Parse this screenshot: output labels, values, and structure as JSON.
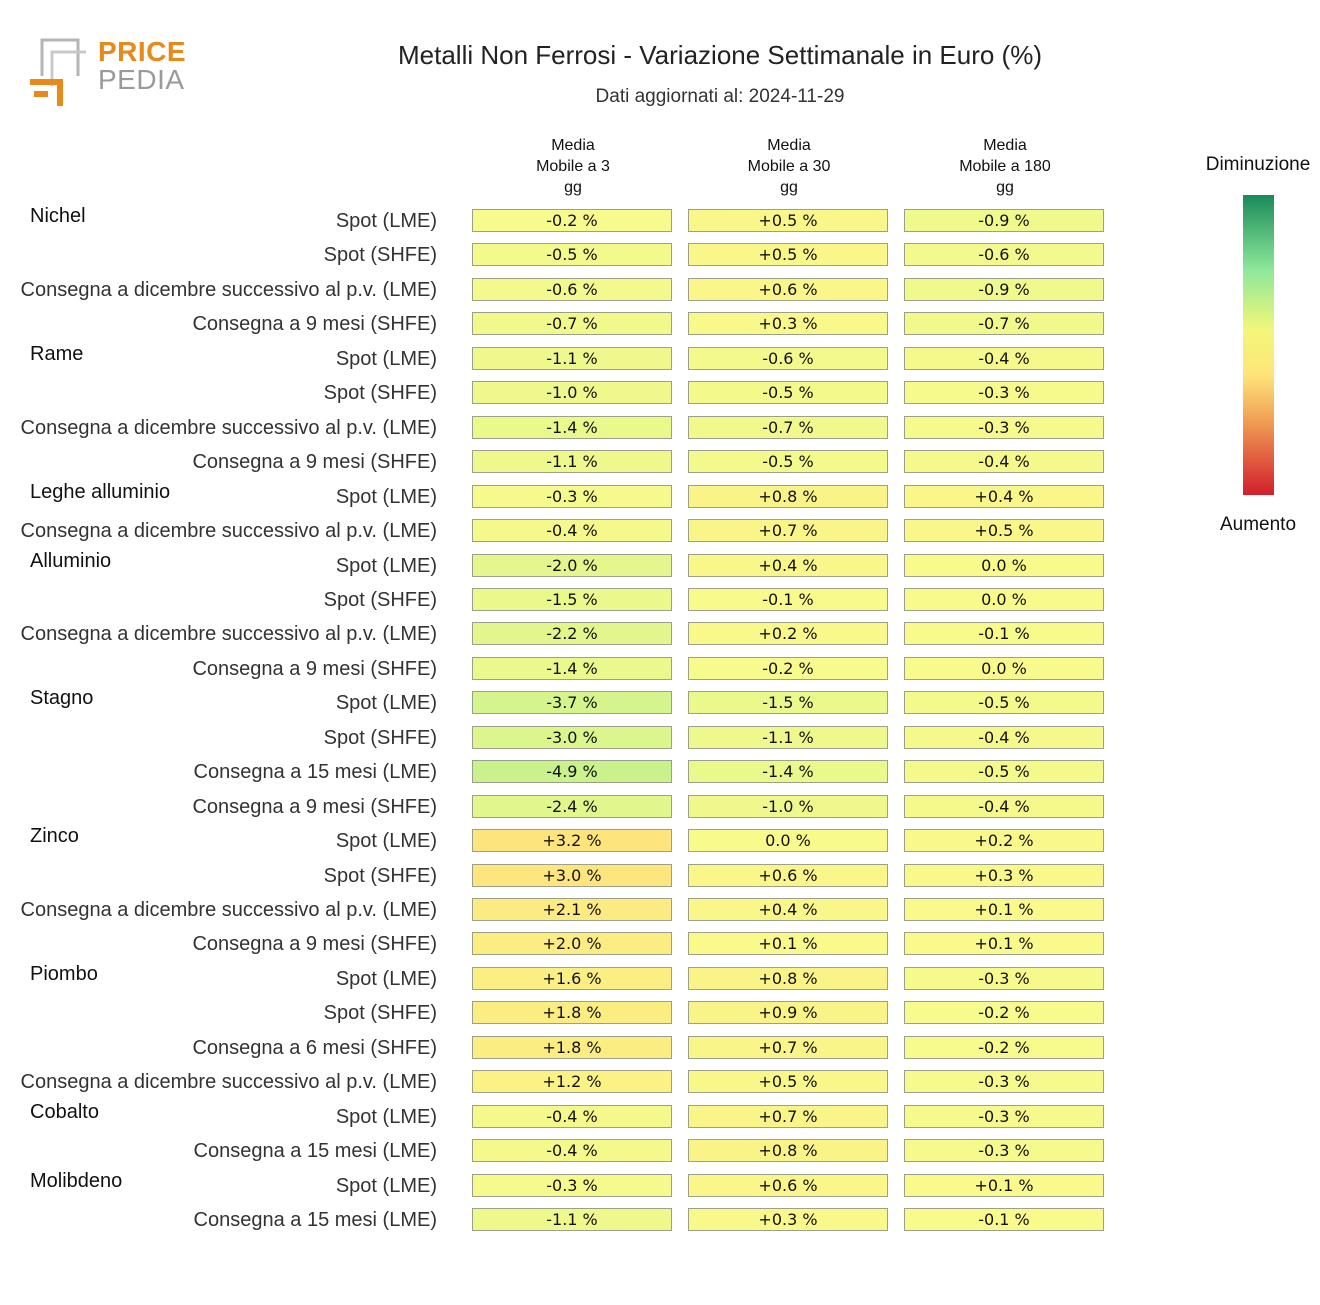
{
  "logo": {
    "word1": "PRICE",
    "word2": "PEDIA"
  },
  "header": {
    "title": "Metalli Non Ferrosi - Variazione Settimanale in Euro (%)",
    "subtitle": "Dati aggiornati al: 2024-11-29"
  },
  "legend": {
    "top_label": "Diminuzione",
    "bottom_label": "Aumento",
    "colors": [
      "#1a8a5a",
      "#8ee89a",
      "#f2f77a",
      "#ffe47a",
      "#f0a055",
      "#d21f2d"
    ]
  },
  "chart_data": {
    "type": "heatmap",
    "columns": [
      "Media Mobile a 3 gg",
      "Media Mobile a 30 gg",
      "Media Mobile a 180 gg"
    ],
    "column_lines": [
      [
        "Media",
        "Mobile a 3",
        "gg"
      ],
      [
        "Media",
        "Mobile a 30",
        "gg"
      ],
      [
        "Media",
        "Mobile a 180",
        "gg"
      ]
    ],
    "unit": "%",
    "groups": [
      {
        "name": "Nichel",
        "rows": [
          {
            "label": "Spot (LME)",
            "values": [
              "-0.2",
              "+0.5",
              "-0.9"
            ]
          },
          {
            "label": "Spot (SHFE)",
            "values": [
              "-0.5",
              "+0.5",
              "-0.6"
            ]
          },
          {
            "label": "Consegna a dicembre successivo al p.v. (LME)",
            "values": [
              "-0.6",
              "+0.6",
              "-0.9"
            ]
          },
          {
            "label": "Consegna a 9 mesi (SHFE)",
            "values": [
              "-0.7",
              "+0.3",
              "-0.7"
            ]
          }
        ]
      },
      {
        "name": "Rame",
        "rows": [
          {
            "label": "Spot (LME)",
            "values": [
              "-1.1",
              "-0.6",
              "-0.4"
            ]
          },
          {
            "label": "Spot (SHFE)",
            "values": [
              "-1.0",
              "-0.5",
              "-0.3"
            ]
          },
          {
            "label": "Consegna a dicembre successivo al p.v. (LME)",
            "values": [
              "-1.4",
              "-0.7",
              "-0.3"
            ]
          },
          {
            "label": "Consegna a 9 mesi (SHFE)",
            "values": [
              "-1.1",
              "-0.5",
              "-0.4"
            ]
          }
        ]
      },
      {
        "name": "Leghe alluminio",
        "rows": [
          {
            "label": "Spot (LME)",
            "values": [
              "-0.3",
              "+0.8",
              "+0.4"
            ]
          },
          {
            "label": "Consegna a dicembre successivo al p.v. (LME)",
            "values": [
              "-0.4",
              "+0.7",
              "+0.5"
            ]
          }
        ]
      },
      {
        "name": "Alluminio",
        "rows": [
          {
            "label": "Spot (LME)",
            "values": [
              "-2.0",
              "+0.4",
              "0.0"
            ]
          },
          {
            "label": "Spot (SHFE)",
            "values": [
              "-1.5",
              "-0.1",
              "0.0"
            ]
          },
          {
            "label": "Consegna a dicembre successivo al p.v. (LME)",
            "values": [
              "-2.2",
              "+0.2",
              "-0.1"
            ]
          },
          {
            "label": "Consegna a 9 mesi (SHFE)",
            "values": [
              "-1.4",
              "-0.2",
              "0.0"
            ]
          }
        ]
      },
      {
        "name": "Stagno",
        "rows": [
          {
            "label": "Spot (LME)",
            "values": [
              "-3.7",
              "-1.5",
              "-0.5"
            ]
          },
          {
            "label": "Spot (SHFE)",
            "values": [
              "-3.0",
              "-1.1",
              "-0.4"
            ]
          },
          {
            "label": "Consegna a 15 mesi (LME)",
            "values": [
              "-4.9",
              "-1.4",
              "-0.5"
            ]
          },
          {
            "label": "Consegna a 9 mesi (SHFE)",
            "values": [
              "-2.4",
              "-1.0",
              "-0.4"
            ]
          }
        ]
      },
      {
        "name": "Zinco",
        "rows": [
          {
            "label": "Spot (LME)",
            "values": [
              "+3.2",
              "0.0",
              "+0.2"
            ]
          },
          {
            "label": "Spot (SHFE)",
            "values": [
              "+3.0",
              "+0.6",
              "+0.3"
            ]
          },
          {
            "label": "Consegna a dicembre successivo al p.v. (LME)",
            "values": [
              "+2.1",
              "+0.4",
              "+0.1"
            ]
          },
          {
            "label": "Consegna a 9 mesi (SHFE)",
            "values": [
              "+2.0",
              "+0.1",
              "+0.1"
            ]
          }
        ]
      },
      {
        "name": "Piombo",
        "rows": [
          {
            "label": "Spot (LME)",
            "values": [
              "+1.6",
              "+0.8",
              "-0.3"
            ]
          },
          {
            "label": "Spot (SHFE)",
            "values": [
              "+1.8",
              "+0.9",
              "-0.2"
            ]
          },
          {
            "label": "Consegna a 6 mesi (SHFE)",
            "values": [
              "+1.8",
              "+0.7",
              "-0.2"
            ]
          },
          {
            "label": "Consegna a dicembre successivo al p.v. (LME)",
            "values": [
              "+1.2",
              "+0.5",
              "-0.3"
            ]
          }
        ]
      },
      {
        "name": "Cobalto",
        "rows": [
          {
            "label": "Spot (LME)",
            "values": [
              "-0.4",
              "+0.7",
              "-0.3"
            ]
          },
          {
            "label": "Consegna a 15 mesi (LME)",
            "values": [
              "-0.4",
              "+0.8",
              "-0.3"
            ]
          }
        ]
      },
      {
        "name": "Molibdeno",
        "rows": [
          {
            "label": "Spot (LME)",
            "values": [
              "-0.3",
              "+0.6",
              "+0.1"
            ]
          },
          {
            "label": "Consegna a 15 mesi (LME)",
            "values": [
              "-1.1",
              "+0.3",
              "-0.1"
            ]
          }
        ]
      }
    ]
  }
}
